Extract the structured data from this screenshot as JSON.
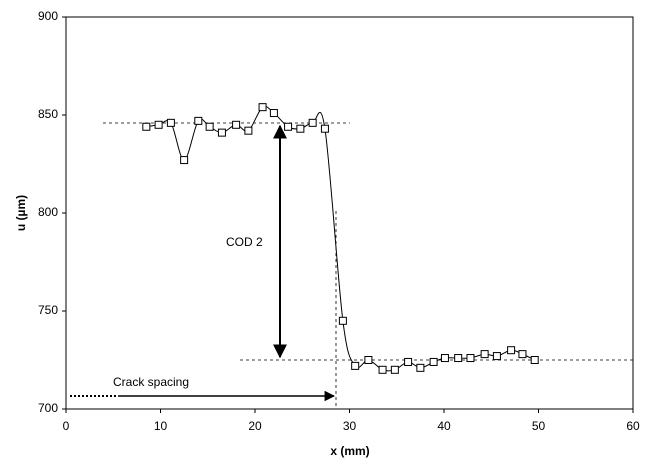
{
  "chart_data": {
    "type": "line",
    "xlabel": "x (mm)",
    "ylabel": "u (µm)",
    "x": [
      8.5,
      9.8,
      11.1,
      12.5,
      14.0,
      15.2,
      16.5,
      18.0,
      19.3,
      20.8,
      22.0,
      23.5,
      24.8,
      26.1,
      27.4,
      29.3,
      30.6,
      32.0,
      33.5,
      34.8,
      36.2,
      37.5,
      38.9,
      40.1,
      41.5,
      42.8,
      44.3,
      45.6,
      47.1,
      48.3,
      49.6
    ],
    "values": [
      844,
      845,
      846,
      827,
      847,
      844,
      841,
      845,
      842,
      854,
      851,
      844,
      843,
      846,
      843,
      745,
      722,
      725,
      720,
      720,
      724,
      721,
      724,
      726,
      726,
      726,
      728,
      727,
      730,
      728,
      725
    ],
    "color": "#000000",
    "marker": "square",
    "xlim": [
      0,
      60
    ],
    "xticks": [
      0,
      10,
      20,
      30,
      40,
      50,
      60
    ],
    "ylim": [
      700,
      900
    ],
    "yticks": [
      700,
      750,
      800,
      850,
      900
    ],
    "grid": false,
    "annotations": [
      "COD 2",
      "Crack spacing"
    ]
  }
}
